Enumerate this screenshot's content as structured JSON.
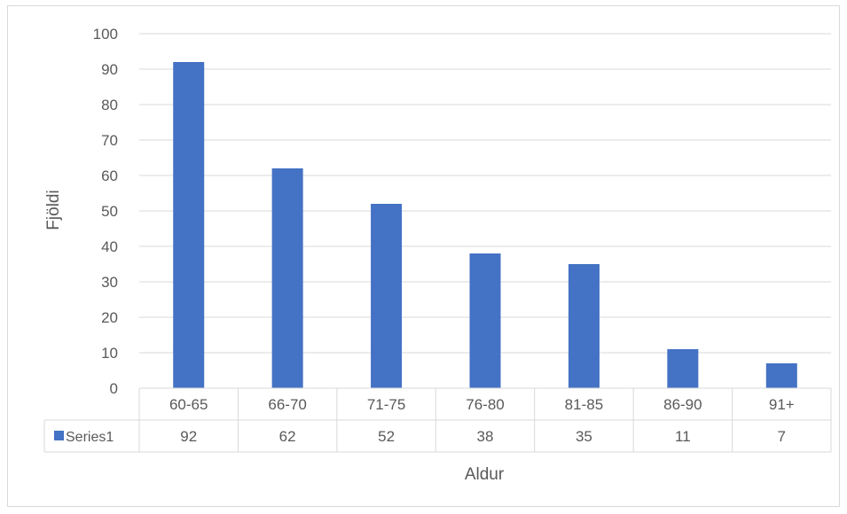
{
  "chart_data": {
    "type": "bar",
    "categories": [
      "60-65",
      "66-70",
      "71-75",
      "76-80",
      "81-85",
      "86-90",
      "91+"
    ],
    "series": [
      {
        "name": "Series1",
        "values": [
          92,
          62,
          52,
          38,
          35,
          11,
          7
        ],
        "color": "#4472c4"
      }
    ],
    "xlabel": "Aldur",
    "ylabel": "Fjöldi",
    "ylim": [
      0,
      100
    ],
    "yticks": [
      0,
      10,
      20,
      30,
      40,
      50,
      60,
      70,
      80,
      90,
      100
    ],
    "grid": true,
    "data_table": true,
    "legend": "in data table"
  }
}
